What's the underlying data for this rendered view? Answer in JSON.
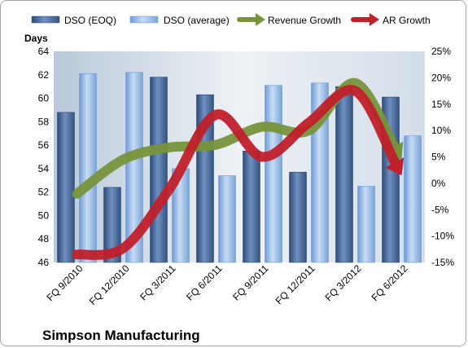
{
  "chart_data": {
    "type": "bar",
    "title": "Simpson Manufacturing",
    "ylabel": "Days",
    "y2label": "",
    "categories": [
      "FQ 9/2010",
      "FQ 12/2010",
      "FQ 3/2011",
      "FQ 6/2011",
      "FQ 9/2011",
      "FQ 12/2011",
      "FQ 3/2012",
      "FQ 6/2012"
    ],
    "ylim": [
      46,
      64
    ],
    "yticks": [
      46,
      48,
      50,
      52,
      54,
      56,
      58,
      60,
      62,
      64
    ],
    "y2lim": [
      -15,
      25
    ],
    "y2ticks": [
      "-15%",
      "-10%",
      "-5%",
      "0%",
      "5%",
      "10%",
      "15%",
      "20%",
      "25%"
    ],
    "y2tick_values": [
      -15,
      -10,
      -5,
      0,
      5,
      10,
      15,
      20,
      25
    ],
    "grid": false,
    "legend_position": "top",
    "series": [
      {
        "name": "DSO (EOQ)",
        "kind": "bar",
        "color": "#4a6fa5",
        "axis": "left",
        "values": [
          58.8,
          52.4,
          61.8,
          60.3,
          55.5,
          53.7,
          61.0,
          60.1
        ]
      },
      {
        "name": "DSO (average)",
        "kind": "bar",
        "color": "#8db3e2",
        "axis": "left",
        "values": [
          62.1,
          62.2,
          54.0,
          53.4,
          61.1,
          61.3,
          52.5,
          56.8
        ]
      },
      {
        "name": "Revenue Growth",
        "kind": "arrow-line",
        "color": "#77933c",
        "axis": "right",
        "values": [
          -2,
          4.5,
          6.8,
          7.3,
          10.7,
          10,
          19,
          4.5
        ]
      },
      {
        "name": "AR Growth",
        "kind": "arrow-line",
        "color": "#c0202a",
        "axis": "right",
        "values": [
          -13.5,
          -12.3,
          -1,
          13,
          5,
          11.5,
          17.5,
          1.5
        ]
      }
    ]
  }
}
